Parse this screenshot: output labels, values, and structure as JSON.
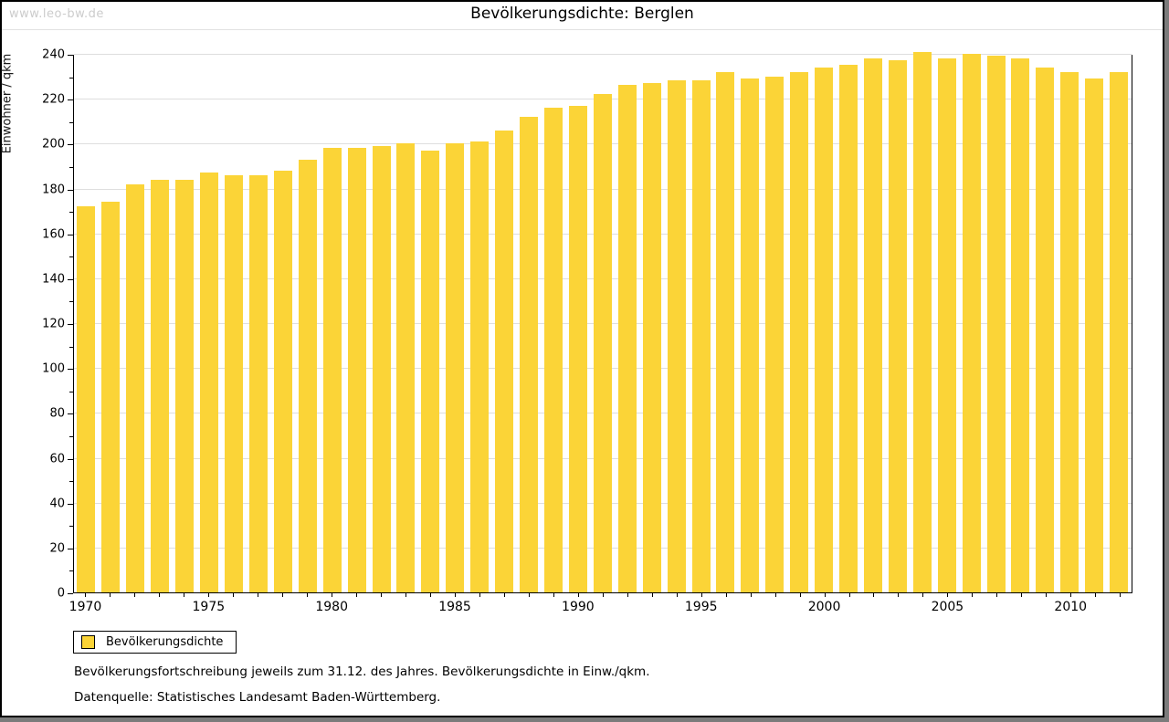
{
  "watermark": "www.leo-bw.de",
  "header": {
    "title": "Bevölkerungsdichte: Berglen"
  },
  "legend": {
    "label": "Bevölkerungsdichte"
  },
  "notes": {
    "line1": "Bevölkerungsfortschreibung jeweils zum 31.12. des Jahres. Bevölkerungsdichte in Einw./qkm.",
    "line2": "Datenquelle: Statistisches Landesamt Baden-Württemberg."
  },
  "chart_data": {
    "type": "bar",
    "title": "Bevölkerungsdichte: Berglen",
    "xlabel": "",
    "ylabel": "Einwohner / qkm",
    "ylim": [
      0,
      240
    ],
    "y_major_step": 20,
    "y_minor_step": 10,
    "x_label_every": 5,
    "grid": true,
    "legend_position": "bottom-left",
    "bar_color": "#fbd437",
    "series_name": "Bevölkerungsdichte",
    "categories": [
      1970,
      1971,
      1972,
      1973,
      1974,
      1975,
      1976,
      1977,
      1978,
      1979,
      1980,
      1981,
      1982,
      1983,
      1984,
      1985,
      1986,
      1987,
      1988,
      1989,
      1990,
      1991,
      1992,
      1993,
      1994,
      1995,
      1996,
      1997,
      1998,
      1999,
      2000,
      2001,
      2002,
      2003,
      2004,
      2005,
      2006,
      2007,
      2008,
      2009,
      2010,
      2011,
      2012
    ],
    "values": [
      172,
      174,
      182,
      184,
      184,
      187,
      186,
      186,
      188,
      193,
      198,
      198,
      199,
      200,
      197,
      200,
      201,
      206,
      212,
      216,
      217,
      222,
      226,
      227,
      228,
      228,
      232,
      229,
      230,
      232,
      234,
      235,
      238,
      237,
      241,
      238,
      240,
      239,
      238,
      234,
      232,
      229,
      232
    ]
  }
}
